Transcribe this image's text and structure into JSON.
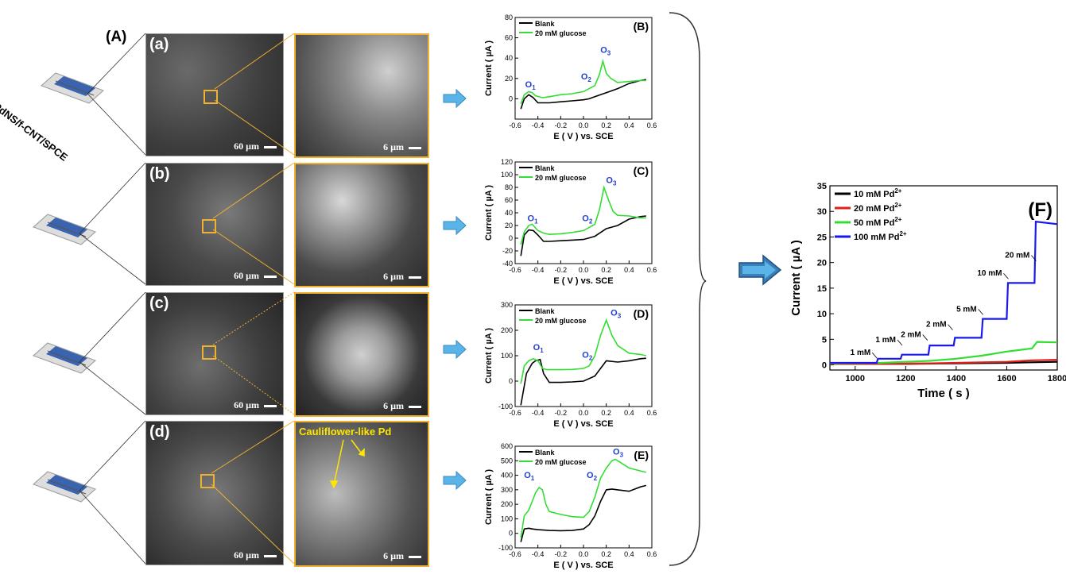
{
  "panel_a": {
    "label": "(A)",
    "electrode_label": "PdNS/f-CNT/SPCE",
    "rows": [
      {
        "letter": "(a)",
        "scale_left": "60 µm",
        "scale_zoom": "6 µm",
        "annotation": ""
      },
      {
        "letter": "(b)",
        "scale_left": "60 µm",
        "scale_zoom": "6 µm",
        "annotation": ""
      },
      {
        "letter": "(c)",
        "scale_left": "60 µm",
        "scale_zoom": "6 µm",
        "annotation": ""
      },
      {
        "letter": "(d)",
        "scale_left": "60 µm",
        "scale_zoom": "6 µm",
        "annotation": "Cauliflower-like Pd"
      }
    ]
  },
  "colors": {
    "blank": "#000000",
    "glucose": "#33dd33",
    "arrow": "#5ab4e8",
    "big_arrow": "#3a7fb8",
    "peak_label": "#1f3fd0",
    "zoom_border": "#f0b030"
  },
  "chart_data": [
    {
      "type": "line",
      "label": "(B)",
      "xlabel": "E ( V ) vs. SCE",
      "ylabel": "Current ( µA )",
      "xlim": [
        -0.6,
        0.6
      ],
      "ylim": [
        -20,
        80
      ],
      "xticks": [
        "-0.6",
        "-0.4",
        "-0.2",
        "0.0",
        "0.2",
        "0.4",
        "0.6"
      ],
      "yticks": [
        "0",
        "20",
        "40",
        "60",
        "80"
      ],
      "peaks": [
        {
          "label": "O",
          "sub": "1",
          "x": -0.47,
          "y": 8
        },
        {
          "label": "O",
          "sub": "2",
          "x": 0.02,
          "y": 16
        },
        {
          "label": "O",
          "sub": "3",
          "x": 0.19,
          "y": 42
        }
      ],
      "series": [
        {
          "name": "Blank",
          "x": [
            -0.55,
            -0.52,
            -0.48,
            -0.44,
            -0.4,
            -0.36,
            -0.3,
            -0.2,
            -0.1,
            0.0,
            0.05,
            0.1,
            0.2,
            0.3,
            0.4,
            0.5,
            0.55
          ],
          "y": [
            -10,
            0,
            4,
            1,
            -4,
            -4,
            -4,
            -3,
            -2,
            -1,
            0,
            2,
            6,
            10,
            15,
            18,
            19
          ]
        },
        {
          "name": "20 mM glucose",
          "x": [
            -0.55,
            -0.52,
            -0.48,
            -0.45,
            -0.42,
            -0.36,
            -0.3,
            -0.2,
            -0.1,
            0.0,
            0.05,
            0.1,
            0.14,
            0.17,
            0.2,
            0.24,
            0.3,
            0.4,
            0.5,
            0.55
          ],
          "y": [
            -5,
            4,
            7,
            6,
            3,
            1,
            2,
            4,
            5,
            7,
            10,
            13,
            24,
            37,
            25,
            20,
            16,
            17,
            18,
            18
          ]
        }
      ]
    },
    {
      "type": "line",
      "label": "(C)",
      "xlabel": "E ( V ) vs. SCE",
      "ylabel": "Current ( µA )",
      "xlim": [
        -0.6,
        0.6
      ],
      "ylim": [
        -40,
        120
      ],
      "xticks": [
        "-0.6",
        "-0.4",
        "-0.2",
        "0.0",
        "0.2",
        "0.4",
        "0.6"
      ],
      "yticks": [
        "-40",
        "-20",
        "0",
        "20",
        "40",
        "60",
        "80",
        "100",
        "120"
      ],
      "peaks": [
        {
          "label": "O",
          "sub": "1",
          "x": -0.45,
          "y": 22
        },
        {
          "label": "O",
          "sub": "2",
          "x": 0.03,
          "y": 22
        },
        {
          "label": "O",
          "sub": "3",
          "x": 0.24,
          "y": 82
        }
      ],
      "series": [
        {
          "name": "Blank",
          "x": [
            -0.55,
            -0.52,
            -0.48,
            -0.44,
            -0.4,
            -0.35,
            -0.3,
            -0.2,
            -0.1,
            0.0,
            0.1,
            0.2,
            0.3,
            0.4,
            0.5,
            0.55
          ],
          "y": [
            -28,
            5,
            13,
            12,
            5,
            -5,
            -5,
            -4,
            -3,
            -2,
            3,
            15,
            20,
            30,
            34,
            35
          ]
        },
        {
          "name": "20 mM glucose",
          "x": [
            -0.55,
            -0.52,
            -0.48,
            -0.45,
            -0.4,
            -0.35,
            -0.3,
            -0.2,
            -0.1,
            0.0,
            0.05,
            0.1,
            0.14,
            0.18,
            0.22,
            0.26,
            0.3,
            0.4,
            0.5,
            0.55
          ],
          "y": [
            -10,
            10,
            20,
            22,
            12,
            8,
            6,
            7,
            9,
            12,
            17,
            22,
            45,
            80,
            60,
            42,
            36,
            35,
            32,
            32
          ]
        }
      ]
    },
    {
      "type": "line",
      "label": "(D)",
      "xlabel": "E ( V ) vs. SCE",
      "ylabel": "Current ( µA )",
      "xlim": [
        -0.6,
        0.6
      ],
      "ylim": [
        -100,
        300
      ],
      "xticks": [
        "-0.6",
        "-0.4",
        "-0.2",
        "0.0",
        "0.2",
        "0.4",
        "0.6"
      ],
      "yticks": [
        "-100",
        "0",
        "100",
        "200",
        "300"
      ],
      "peaks": [
        {
          "label": "O",
          "sub": "1",
          "x": -0.4,
          "y": 110
        },
        {
          "label": "O",
          "sub": "2",
          "x": 0.03,
          "y": 80
        },
        {
          "label": "O",
          "sub": "3",
          "x": 0.28,
          "y": 245
        }
      ],
      "series": [
        {
          "name": "Blank",
          "x": [
            -0.55,
            -0.5,
            -0.45,
            -0.42,
            -0.38,
            -0.35,
            -0.3,
            -0.2,
            -0.1,
            0.0,
            0.1,
            0.2,
            0.3,
            0.4,
            0.5,
            0.55
          ],
          "y": [
            -95,
            30,
            70,
            80,
            85,
            30,
            -5,
            -5,
            -3,
            0,
            20,
            80,
            75,
            80,
            88,
            90
          ]
        },
        {
          "name": "20 mM glucose",
          "x": [
            -0.55,
            -0.52,
            -0.48,
            -0.44,
            -0.4,
            -0.36,
            -0.32,
            -0.2,
            -0.1,
            0.0,
            0.05,
            0.1,
            0.15,
            0.2,
            0.25,
            0.3,
            0.4,
            0.5,
            0.55
          ],
          "y": [
            -10,
            60,
            80,
            88,
            80,
            50,
            45,
            45,
            46,
            50,
            60,
            100,
            180,
            240,
            180,
            140,
            110,
            105,
            100
          ]
        }
      ]
    },
    {
      "type": "line",
      "label": "(E)",
      "xlabel": "E ( V ) vs. SCE",
      "ylabel": "Current ( µA )",
      "xlim": [
        -0.6,
        0.6
      ],
      "ylim": [
        -100,
        600
      ],
      "xticks": [
        "-0.6",
        "-0.4",
        "-0.2",
        "0.0",
        "0.2",
        "0.4",
        "0.6"
      ],
      "yticks": [
        "-100",
        "0",
        "100",
        "200",
        "300",
        "400",
        "500",
        "600"
      ],
      "peaks": [
        {
          "label": "O",
          "sub": "1",
          "x": -0.48,
          "y": 360
        },
        {
          "label": "O",
          "sub": "2",
          "x": 0.07,
          "y": 360
        },
        {
          "label": "O",
          "sub": "3",
          "x": 0.3,
          "y": 520
        }
      ],
      "series": [
        {
          "name": "Blank",
          "x": [
            -0.55,
            -0.52,
            -0.48,
            -0.45,
            -0.4,
            -0.3,
            -0.2,
            -0.1,
            0.0,
            0.05,
            0.1,
            0.15,
            0.2,
            0.25,
            0.3,
            0.4,
            0.5,
            0.55
          ],
          "y": [
            -60,
            30,
            35,
            30,
            25,
            20,
            18,
            20,
            30,
            60,
            120,
            220,
            300,
            305,
            300,
            290,
            320,
            330
          ]
        },
        {
          "name": "20 mM glucose",
          "x": [
            -0.55,
            -0.52,
            -0.48,
            -0.45,
            -0.42,
            -0.39,
            -0.36,
            -0.33,
            -0.3,
            -0.2,
            -0.1,
            0.0,
            0.05,
            0.1,
            0.15,
            0.2,
            0.25,
            0.28,
            0.32,
            0.4,
            0.5,
            0.55
          ],
          "y": [
            -30,
            120,
            160,
            220,
            280,
            315,
            300,
            200,
            150,
            130,
            115,
            110,
            150,
            250,
            380,
            450,
            500,
            510,
            490,
            450,
            430,
            420
          ]
        }
      ]
    },
    {
      "type": "line",
      "label": "(F)",
      "xlabel": "Time ( s )",
      "ylabel": "Current ( µA )",
      "xlim": [
        900,
        1800
      ],
      "ylim": [
        -1,
        35
      ],
      "xticks": [
        "1000",
        "1200",
        "1400",
        "1600",
        "1800"
      ],
      "yticks": [
        "0",
        "5",
        "10",
        "15",
        "20",
        "25",
        "30",
        "35"
      ],
      "annotations": [
        {
          "text": "1 mM",
          "x": 1080,
          "y": 1.0
        },
        {
          "text": "1 mM",
          "x": 1180,
          "y": 3.5
        },
        {
          "text": "2 mM",
          "x": 1280,
          "y": 4.5
        },
        {
          "text": "2 mM",
          "x": 1380,
          "y": 6.5
        },
        {
          "text": "5 mM",
          "x": 1500,
          "y": 9.5
        },
        {
          "text": "10 mM",
          "x": 1600,
          "y": 16.5
        },
        {
          "text": "20 mM",
          "x": 1710,
          "y": 20
        }
      ],
      "series": [
        {
          "name": "10 mM Pd",
          "sup": "2+",
          "color": "#000000",
          "x": [
            900,
            1100,
            1200,
            1300,
            1400,
            1500,
            1600,
            1700,
            1800
          ],
          "y": [
            0.2,
            0.2,
            0.2,
            0.25,
            0.3,
            0.35,
            0.4,
            0.5,
            0.6
          ]
        },
        {
          "name": "20 mM Pd",
          "sup": "2+",
          "color": "#e0201a",
          "x": [
            900,
            1100,
            1200,
            1300,
            1400,
            1500,
            1600,
            1700,
            1800
          ],
          "y": [
            0.2,
            0.2,
            0.25,
            0.3,
            0.4,
            0.5,
            0.6,
            0.9,
            1.0
          ]
        },
        {
          "name": "50 mM Pd",
          "sup": "2+",
          "color": "#33dd33",
          "x": [
            900,
            1100,
            1200,
            1300,
            1400,
            1500,
            1600,
            1700,
            1720,
            1800
          ],
          "y": [
            0.3,
            0.4,
            0.6,
            0.8,
            1.2,
            1.8,
            2.6,
            3.2,
            4.5,
            4.4
          ]
        },
        {
          "name": "100 mM Pd",
          "sup": "2+",
          "color": "#1a1aee",
          "x": [
            900,
            1085,
            1090,
            1180,
            1185,
            1290,
            1295,
            1390,
            1395,
            1500,
            1505,
            1600,
            1605,
            1710,
            1715,
            1800
          ],
          "y": [
            0.4,
            0.4,
            1.2,
            1.2,
            2.0,
            2.0,
            3.8,
            3.8,
            5.3,
            5.3,
            9.0,
            9.0,
            16.0,
            16.0,
            28.0,
            27.5
          ]
        }
      ]
    }
  ]
}
